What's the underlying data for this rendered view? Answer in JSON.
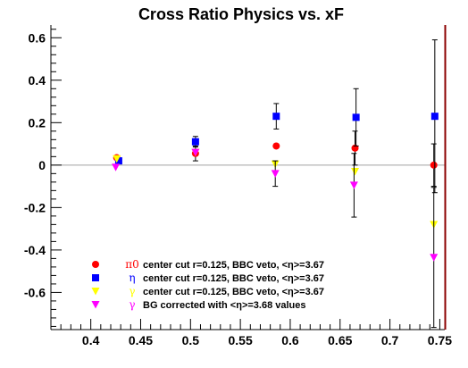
{
  "chart_data": {
    "type": "scatter",
    "title": "Cross Ratio Physics vs. xF",
    "xlabel": "",
    "ylabel": "",
    "xlim": [
      0.36,
      0.755
    ],
    "ylim": [
      -0.775,
      0.66
    ],
    "x_ticks": [
      0.4,
      0.45,
      0.5,
      0.55,
      0.6,
      0.65,
      0.7,
      0.75
    ],
    "x_tick_labels": [
      "0.4",
      "0.45",
      "0.5",
      "0.55",
      "0.6",
      "0.65",
      "0.7",
      "0.75"
    ],
    "y_ticks": [
      -0.6,
      -0.4,
      -0.2,
      0,
      0.2,
      0.4,
      0.6
    ],
    "y_tick_labels": [
      "-0.6",
      "-0.4",
      "-0.2",
      "0",
      "0.2",
      "0.4",
      "0.6"
    ],
    "reference_line_y": 0,
    "series": [
      {
        "name": "π0 center cut r=0.125, BBC veto, <η>=3.67",
        "symbol_label": "π0",
        "label_text": "center cut r=0.125, BBC veto, <η>=3.67",
        "marker": "circle",
        "color": "#ff0000",
        "x": [
          0.426,
          0.505,
          0.586,
          0.665,
          0.744
        ],
        "y": [
          0.035,
          0.055,
          0.09,
          0.08,
          0.0
        ],
        "err": [
          0.0,
          0.035,
          0.0,
          0.08,
          0.1
        ]
      },
      {
        "name": "η center cut r=0.125, BBC veto, <η>=3.67",
        "symbol_label": "η",
        "label_text": "center cut r=0.125, BBC veto, <η>=3.67",
        "marker": "square",
        "color": "#0000ff",
        "x": [
          0.428,
          0.505,
          0.586,
          0.666,
          0.745
        ],
        "y": [
          0.02,
          0.11,
          0.23,
          0.225,
          0.23
        ],
        "err": [
          0.0,
          0.025,
          0.06,
          0.135,
          0.36
        ]
      },
      {
        "name": "γ center cut r=0.125, BBC veto, <η>=3.67",
        "symbol_label": "γ",
        "label_text": "center cut r=0.125, BBC veto, <η>=3.67",
        "marker": "triangle-down",
        "color": "#ffff00",
        "x": [
          0.426,
          0.505,
          0.585,
          0.665,
          0.744
        ],
        "y": [
          0.03,
          0.06,
          0.005,
          -0.03,
          -0.28
        ],
        "err": [
          0.0,
          0.0,
          0.0,
          0.0,
          0.0
        ]
      },
      {
        "name": "γ BG corrected with <η>=3.68 values",
        "symbol_label": "γ",
        "label_text": "BG corrected with <η>=3.68 values",
        "marker": "triangle-down",
        "color": "#ff00ff",
        "x": [
          0.425,
          0.505,
          0.585,
          0.664,
          0.744
        ],
        "y": [
          -0.01,
          0.06,
          -0.04,
          -0.095,
          -0.435
        ],
        "err": [
          0.0,
          0.0,
          0.06,
          0.15,
          0.33
        ]
      }
    ]
  },
  "colors": {
    "axis": "#000000",
    "zero_line": "#a0a0a0",
    "right_frame": "#8b0000",
    "background": "#ffffff"
  }
}
